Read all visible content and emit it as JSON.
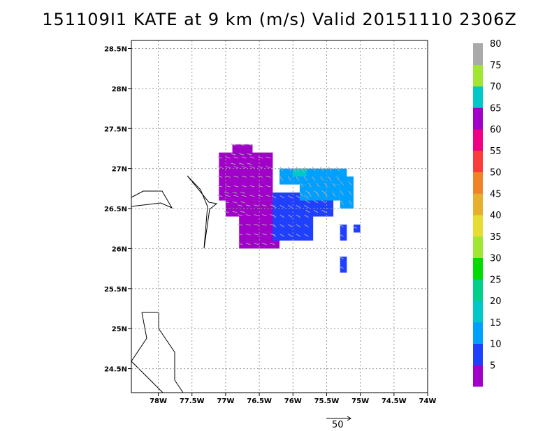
{
  "title": "151109I1 KATE at 9 km (m/s) Valid 20151110 2306Z",
  "chart_data": {
    "type": "heatmap",
    "title": "151109I1 KATE at 9 km (m/s) Valid 20151110 2306Z",
    "x_range": [
      -78.4,
      -74.0
    ],
    "y_range": [
      24.2,
      28.6
    ],
    "x_ticks": [
      -78,
      -77.5,
      -77,
      -76.5,
      -76,
      -75.5,
      -75,
      -74.5,
      -74
    ],
    "x_tick_labels": [
      "78W",
      "77.5W",
      "77W",
      "76.5W",
      "76W",
      "75.5W",
      "75W",
      "74.5W",
      "74W"
    ],
    "y_ticks": [
      24.5,
      25,
      25.5,
      26,
      26.5,
      27,
      27.5,
      28,
      28.5
    ],
    "y_tick_labels": [
      "24.5N",
      "25N",
      "25.5N",
      "26N",
      "26.5N",
      "27N",
      "27.5N",
      "28N",
      "28.5N"
    ],
    "grid": true,
    "colorbar": {
      "labels": [
        "5",
        "10",
        "15",
        "20",
        "25",
        "30",
        "35",
        "40",
        "45",
        "50",
        "55",
        "60",
        "65",
        "70",
        "75",
        "80"
      ],
      "colors": [
        "#a000c8",
        "#2040ff",
        "#00a0ff",
        "#00c8c8",
        "#00d08c",
        "#00dc00",
        "#a0e632",
        "#e6dc32",
        "#e6af2d",
        "#f08228",
        "#fa3c3c",
        "#f00082",
        "#a000c8",
        "#00c8c8",
        "#a0e632",
        "#aaaaaa"
      ]
    },
    "wind_speed_regions": [
      {
        "speed_mps": 5,
        "blocks": [
          [
            -77.1,
            26.6,
            -76.3,
            27.2
          ],
          [
            -76.8,
            26.0,
            -76.2,
            26.6
          ],
          [
            -77.0,
            26.4,
            -76.6,
            26.8
          ],
          [
            -76.9,
            27.0,
            -76.6,
            27.3
          ]
        ]
      },
      {
        "speed_mps": 10,
        "blocks": [
          [
            -76.3,
            26.1,
            -75.7,
            26.7
          ],
          [
            -75.8,
            26.4,
            -75.4,
            26.8
          ],
          [
            -75.3,
            26.1,
            -75.2,
            26.3
          ],
          [
            -75.1,
            26.2,
            -75.0,
            26.3
          ],
          [
            -75.3,
            25.7,
            -75.2,
            25.9
          ]
        ]
      },
      {
        "speed_mps": 15,
        "blocks": [
          [
            -76.2,
            26.8,
            -75.2,
            27.0
          ],
          [
            -75.9,
            26.6,
            -75.3,
            26.8
          ],
          [
            -75.3,
            26.5,
            -75.1,
            26.9
          ]
        ]
      },
      {
        "speed_mps": 20,
        "blocks": [
          [
            -76.0,
            26.9,
            -75.8,
            27.0
          ]
        ]
      }
    ],
    "reference_vector": {
      "label": "50"
    }
  }
}
